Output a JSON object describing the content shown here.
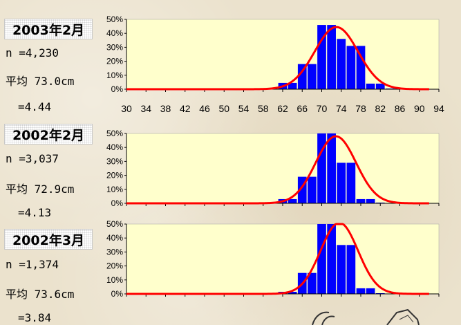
{
  "colors": {
    "plot_background": "#ffffcc",
    "bar_fill": "#0000ff",
    "curve": "#ff0000",
    "axis": "#000000"
  },
  "chart_data": [
    {
      "type": "bar",
      "title": "2003年2月",
      "n": "n =4,230",
      "mean": "平均 73.0cm",
      "sd": "=4.44",
      "x": [
        30,
        32,
        34,
        36,
        38,
        40,
        42,
        44,
        46,
        48,
        50,
        52,
        54,
        56,
        58,
        60,
        62,
        64,
        66,
        68,
        70,
        72,
        74,
        76,
        78,
        80,
        82,
        84,
        86,
        88,
        90,
        92,
        94
      ],
      "values": [
        0,
        0,
        0,
        0,
        0,
        0,
        0,
        0,
        0,
        0,
        0,
        0,
        0,
        0.5,
        0.5,
        0.5,
        4.5,
        4.5,
        18,
        18,
        46,
        46,
        36,
        31,
        31,
        4,
        4,
        0.5,
        0.5,
        0,
        0,
        0,
        0
      ],
      "curve": {
        "mean": 73.0,
        "sd": 4.44,
        "peak": 44.5
      },
      "xticks": [
        "30",
        "34",
        "38",
        "42",
        "46",
        "50",
        "54",
        "58",
        "62",
        "66",
        "70",
        "74",
        "78",
        "82",
        "86",
        "90",
        "94"
      ],
      "yticks": [
        "50%",
        "40%",
        "30%",
        "20%",
        "10%",
        "0%"
      ],
      "ylim": [
        0,
        50
      ],
      "xlim": [
        30,
        94
      ]
    },
    {
      "type": "bar",
      "title": "2002年2月",
      "n": "n =3,037",
      "mean": "平均 72.9cm",
      "sd": "=4.13",
      "x": [
        30,
        32,
        34,
        36,
        38,
        40,
        42,
        44,
        46,
        48,
        50,
        52,
        54,
        56,
        58,
        60,
        62,
        64,
        66,
        68,
        70,
        72,
        74,
        76,
        78,
        80,
        82,
        84,
        86,
        88,
        90,
        92,
        94
      ],
      "values": [
        0,
        0,
        0,
        0,
        0,
        0,
        0,
        0,
        0,
        0,
        0,
        0,
        0,
        0,
        0.5,
        0.5,
        3,
        3,
        19,
        19,
        51,
        51,
        29,
        29,
        3,
        3,
        0.5,
        0,
        0,
        0,
        0,
        0,
        0
      ],
      "curve": {
        "mean": 72.9,
        "sd": 4.13,
        "peak": 48
      },
      "yticks": [
        "50%",
        "40%",
        "30%",
        "20%",
        "10%",
        "0%"
      ],
      "ylim": [
        0,
        50
      ],
      "xlim": [
        30,
        94
      ]
    },
    {
      "type": "bar",
      "title": "2002年3月",
      "n": "n =1,374",
      "mean": "平均 73.6cm",
      "sd": "=3.84",
      "x": [
        30,
        32,
        34,
        36,
        38,
        40,
        42,
        44,
        46,
        48,
        50,
        52,
        54,
        56,
        58,
        60,
        62,
        64,
        66,
        68,
        70,
        72,
        74,
        76,
        78,
        80,
        82,
        84,
        86,
        88,
        90,
        92,
        94
      ],
      "values": [
        0,
        0,
        0,
        0,
        0,
        0,
        0,
        0,
        0,
        0,
        0,
        0,
        0,
        0,
        0,
        0,
        1.5,
        1.5,
        15,
        15,
        51,
        51,
        35,
        35,
        4,
        4,
        0.5,
        0,
        0,
        0,
        0,
        0,
        0
      ],
      "curve": {
        "mean": 73.6,
        "sd": 3.84,
        "peak": 51
      },
      "yticks": [
        "50%",
        "40%",
        "30%",
        "20%",
        "10%",
        "0%"
      ],
      "ylim": [
        0,
        50
      ],
      "xlim": [
        30,
        94
      ]
    }
  ]
}
